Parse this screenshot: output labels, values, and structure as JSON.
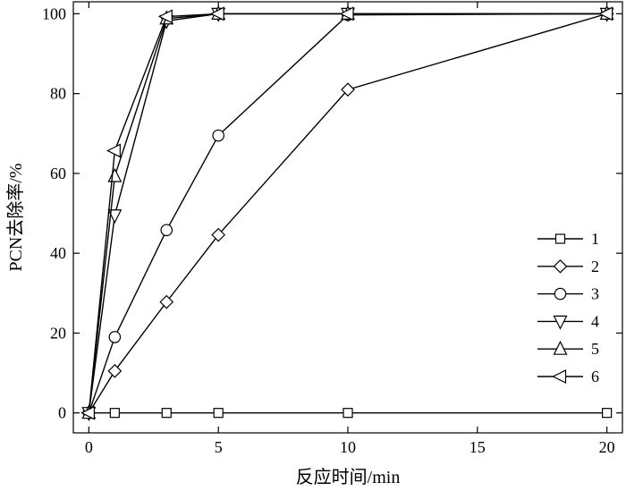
{
  "chart_data": {
    "type": "line",
    "title": "",
    "xlabel": "反应时间/min",
    "ylabel": "PCN去除率/%",
    "xlim": [
      -0.6,
      20.6
    ],
    "ylim": [
      -5,
      103
    ],
    "x_ticks": [
      0,
      5,
      10,
      15,
      20
    ],
    "y_ticks": [
      0,
      20,
      40,
      60,
      80,
      100
    ],
    "grid": false,
    "legend_position": "right",
    "series": [
      {
        "name": "1",
        "marker": "square",
        "x": [
          0,
          1,
          3,
          5,
          10,
          20
        ],
        "y": [
          0,
          0,
          0,
          0,
          0,
          0
        ]
      },
      {
        "name": "2",
        "marker": "diamond",
        "x": [
          0,
          1,
          3,
          5,
          10,
          20
        ],
        "y": [
          0,
          10.5,
          27.8,
          44.6,
          81,
          100
        ]
      },
      {
        "name": "3",
        "marker": "circle",
        "x": [
          0,
          1,
          3,
          5,
          10,
          20
        ],
        "y": [
          0,
          19,
          45.8,
          69.5,
          99.7,
          100
        ]
      },
      {
        "name": "4",
        "marker": "triangle-down",
        "x": [
          0,
          1,
          3,
          5,
          10,
          20
        ],
        "y": [
          0,
          49.5,
          98.2,
          100,
          100,
          100
        ]
      },
      {
        "name": "5",
        "marker": "triangle-up",
        "x": [
          0,
          1,
          3,
          5,
          10,
          20
        ],
        "y": [
          0,
          59.3,
          98.8,
          100,
          100,
          100
        ]
      },
      {
        "name": "6",
        "marker": "triangle-left",
        "x": [
          0,
          1,
          3,
          5,
          10,
          20
        ],
        "y": [
          0,
          65.7,
          99.3,
          100,
          100,
          100
        ]
      }
    ]
  }
}
